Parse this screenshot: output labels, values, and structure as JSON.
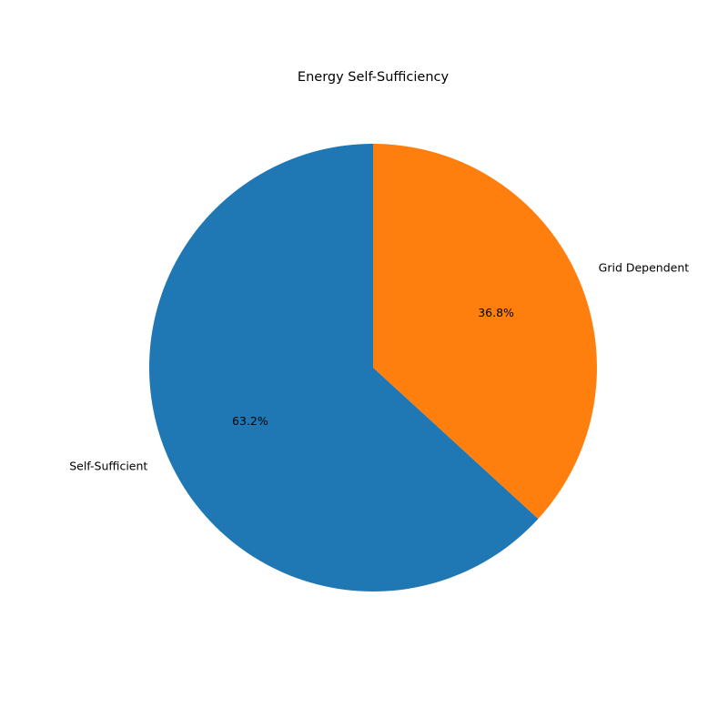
{
  "chart_data": {
    "type": "pie",
    "title": "Energy Self-Sufficiency",
    "categories": [
      "Self-Sufficient",
      "Grid Dependent"
    ],
    "values": [
      63.2,
      36.8
    ],
    "percent_labels": [
      "63.2%",
      "36.8%"
    ],
    "colors": [
      "#1f77b4",
      "#ff7f0e"
    ],
    "start_angle_deg": 90,
    "direction": "counterclockwise",
    "legend": "none"
  }
}
